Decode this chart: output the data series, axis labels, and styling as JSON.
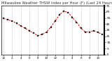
{
  "title": "Milwaukee Weather THSW Index per Hour (F) (Last 24 Hours)",
  "title_fontsize": 3.8,
  "title_color": "#333333",
  "background_color": "#ffffff",
  "plot_bg_color": "#ffffff",
  "grid_color": "#aaaaaa",
  "line_color": "#cc0000",
  "marker_color": "#222222",
  "x_hours": [
    0,
    1,
    2,
    3,
    4,
    5,
    6,
    7,
    8,
    9,
    10,
    11,
    12,
    13,
    14,
    15,
    16,
    17,
    18,
    19,
    20,
    21,
    22,
    23
  ],
  "y_values": [
    54,
    52,
    50,
    46,
    42,
    38,
    34,
    30,
    26,
    28,
    32,
    40,
    50,
    60,
    66,
    64,
    56,
    48,
    38,
    32,
    32,
    34,
    31,
    28
  ],
  "ylim": [
    -5,
    75
  ],
  "yticks": [
    -5,
    5,
    15,
    25,
    35,
    45,
    55,
    65,
    75
  ],
  "ytick_labels": [
    "-5",
    "5",
    "15",
    "25",
    "35",
    "45",
    "55",
    "65",
    "75"
  ],
  "xtick_positions": [
    0,
    2,
    4,
    6,
    8,
    10,
    12,
    14,
    16,
    18,
    20,
    22
  ],
  "xtick_labels": [
    "12",
    "2",
    "4",
    "6",
    "8",
    "10",
    "12",
    "2",
    "4",
    "6",
    "8",
    "10"
  ],
  "xlabel": "",
  "ylabel": "",
  "ytick_fontsize": 3.2,
  "xtick_fontsize": 3.0,
  "linewidth": 0.7,
  "markersize": 1.5,
  "grid_dashes": [
    1.5,
    1.5
  ],
  "grid_linewidth": 0.4,
  "right_border_color": "#000000"
}
